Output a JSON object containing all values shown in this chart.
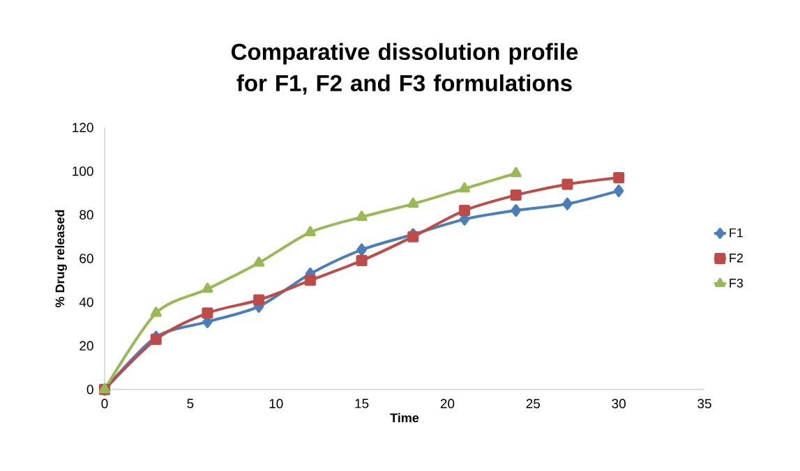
{
  "chart_data": {
    "type": "line",
    "title": "Comparative dissolution profile for F1, F2 and F3 formulations",
    "xlabel": "Time",
    "ylabel": "% Drug released",
    "x": [
      0,
      3,
      6,
      9,
      12,
      15,
      18,
      21,
      24,
      27,
      30
    ],
    "series": [
      {
        "name": "F1",
        "color": "#4a7ebb",
        "marker": "diamond",
        "values": [
          0,
          24,
          31,
          38,
          53,
          64,
          71,
          78,
          82,
          85,
          91
        ]
      },
      {
        "name": "F2",
        "color": "#be4b48",
        "marker": "square",
        "values": [
          0,
          23,
          35,
          41,
          50,
          59,
          70,
          82,
          89,
          94,
          97
        ]
      },
      {
        "name": "F3",
        "color": "#98b954",
        "marker": "triangle",
        "values": [
          0,
          35,
          46,
          58,
          72,
          79,
          85,
          92,
          99,
          null,
          null
        ]
      }
    ],
    "xlim": [
      0,
      35
    ],
    "xticks": [
      0,
      5,
      10,
      15,
      20,
      25,
      30,
      35
    ],
    "ylim": [
      0,
      120
    ],
    "yticks": [
      0,
      20,
      40,
      60,
      80,
      100,
      120
    ],
    "legend": "right",
    "grid": false
  }
}
